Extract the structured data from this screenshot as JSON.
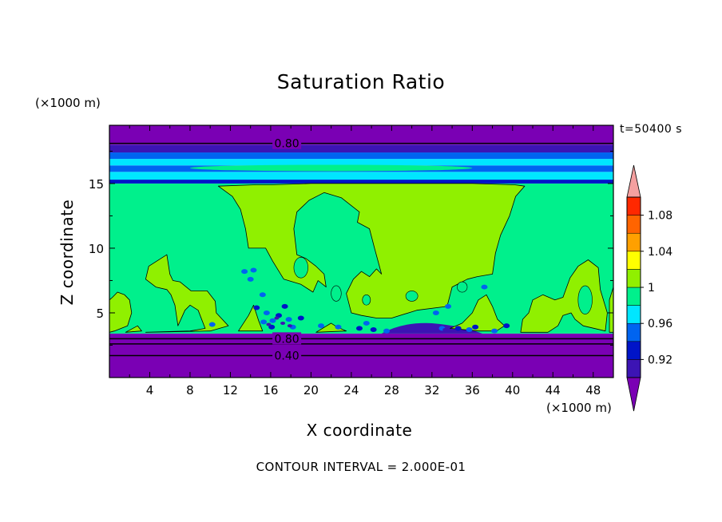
{
  "chart_data": {
    "type": "heatmap",
    "title": "Saturation Ratio",
    "xlabel": "X coordinate",
    "ylabel": "Z coordinate",
    "x_units": "(×1000 m)",
    "y_units": "(×1000 m)",
    "time_label": "t=50400 s",
    "footer": "CONTOUR INTERVAL = 2.000E-01",
    "xlim": [
      0,
      50
    ],
    "ylim": [
      0,
      19.5
    ],
    "x_ticks": [
      4,
      8,
      12,
      16,
      20,
      24,
      28,
      32,
      36,
      40,
      44,
      48
    ],
    "y_ticks": [
      5,
      10,
      15
    ],
    "contour_labels": [
      {
        "text": "0.80",
        "x": 17.6,
        "z": 18.1
      },
      {
        "text": "0.80",
        "x": 17.6,
        "z": 3.0
      },
      {
        "text": "0.40",
        "x": 17.6,
        "z": 1.7
      }
    ],
    "colorbar": {
      "labels": [
        "1.08",
        "1.04",
        "1",
        "0.96",
        "0.92"
      ],
      "levels": [
        0.92,
        0.94,
        0.96,
        0.98,
        1.0,
        1.02,
        1.04,
        1.06,
        1.08,
        1.1
      ],
      "colors": [
        "#7a00b4",
        "#3c14b4",
        "#0014c8",
        "#0064f0",
        "#00e6ff",
        "#00f08c",
        "#90f000",
        "#ffff00",
        "#ffa000",
        "#ff6400",
        "#ff2800",
        "#f5a0a0"
      ]
    },
    "bands": [
      {
        "z0": 0,
        "z1": 3.4,
        "color": "#7a00b4"
      },
      {
        "z0": 3.4,
        "z1": 15.0,
        "color": "#00f08c"
      },
      {
        "z0": 15.0,
        "z1": 15.3,
        "color": "#0014c8"
      },
      {
        "z0": 15.3,
        "z1": 15.9,
        "color": "#00e6ff"
      },
      {
        "z0": 15.9,
        "z1": 16.4,
        "color": "#0064f0"
      },
      {
        "z0": 16.4,
        "z1": 16.9,
        "color": "#00e6ff"
      },
      {
        "z0": 16.9,
        "z1": 17.4,
        "color": "#0064f0"
      },
      {
        "z0": 17.4,
        "z1": 18.0,
        "color": "#3c14b4"
      },
      {
        "z0": 18.0,
        "z1": 19.5,
        "color": "#7a00b4"
      }
    ],
    "contour_lines_z": [
      1.7,
      2.6,
      3.0,
      18.1
    ]
  }
}
